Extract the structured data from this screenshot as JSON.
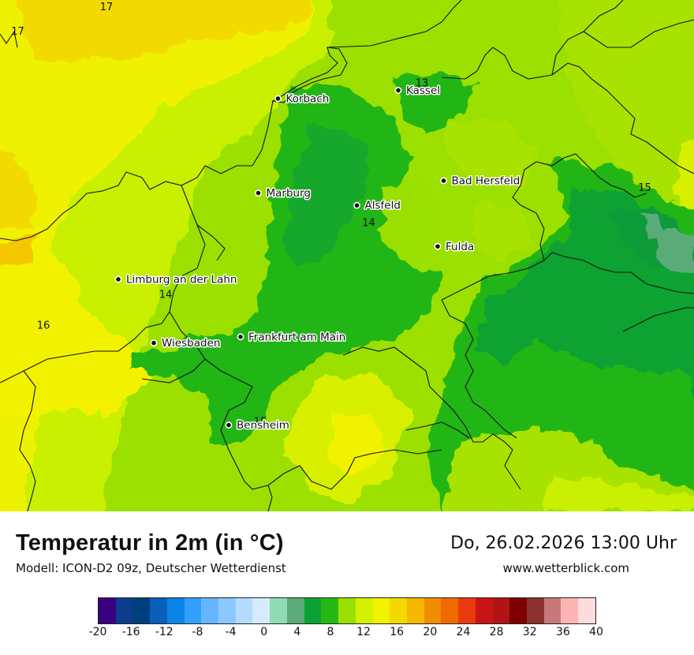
{
  "map": {
    "cities": [
      {
        "name": "Kassel",
        "lon": 9.48,
        "lat": 51.31
      },
      {
        "name": "Korbach",
        "lon": 8.87,
        "lat": 51.27
      },
      {
        "name": "Bad Hersfeld",
        "lon": 9.71,
        "lat": 50.87
      },
      {
        "name": "Marburg",
        "lon": 8.77,
        "lat": 50.81
      },
      {
        "name": "Alsfeld",
        "lon": 9.27,
        "lat": 50.75
      },
      {
        "name": "Fulda",
        "lon": 9.68,
        "lat": 50.55
      },
      {
        "name": "Limburg an der Lahn",
        "lon": 8.06,
        "lat": 50.39
      },
      {
        "name": "Frankfurt am Main",
        "lon": 8.68,
        "lat": 50.11
      },
      {
        "name": "Wiesbaden",
        "lon": 8.24,
        "lat": 50.08
      },
      {
        "name": "Bensheim",
        "lon": 8.62,
        "lat": 49.68
      }
    ],
    "isotherm_labels": [
      {
        "text": "17",
        "lon": 8.0,
        "lat": 51.7
      },
      {
        "text": "17",
        "lon": 7.55,
        "lat": 51.58
      },
      {
        "text": "13",
        "lon": 9.6,
        "lat": 51.33
      },
      {
        "text": "15",
        "lon": 10.73,
        "lat": 50.82
      },
      {
        "text": "14",
        "lon": 9.33,
        "lat": 50.65
      },
      {
        "text": "14",
        "lon": 8.3,
        "lat": 50.3
      },
      {
        "text": "16",
        "lon": 7.68,
        "lat": 50.15
      },
      {
        "text": "15",
        "lon": 8.78,
        "lat": 49.68
      }
    ]
  },
  "footer": {
    "title": "Temperatur in 2m (in °C)",
    "model": "Modell: ICON-D2 09z, Deutscher Wetterdienst",
    "datetime": "Do, 26.02.2026 13:00 Uhr",
    "website": "www.wetterblick.com"
  },
  "scale": {
    "ticks": [
      "-20",
      "-16",
      "-12",
      "-8",
      "-4",
      "0",
      "4",
      "8",
      "12",
      "16",
      "20",
      "24",
      "28",
      "32",
      "36",
      "40"
    ],
    "colors": [
      "#3a0082",
      "#0d3b8e",
      "#003f7d",
      "#0a5fb8",
      "#0a84e6",
      "#33a0ff",
      "#66b6ff",
      "#8cc8ff",
      "#b4dcff",
      "#d6ebff",
      "#8fdcb4",
      "#5aab78",
      "#0ca233",
      "#25b815",
      "#99df00",
      "#d4f000",
      "#f2f200",
      "#f4d800",
      "#f4b800",
      "#f28d00",
      "#f06a00",
      "#e83a0c",
      "#c81414",
      "#b01414",
      "#7e0000",
      "#8c3030",
      "#c87878",
      "#ffb4b4",
      "#ffdcdc"
    ]
  }
}
